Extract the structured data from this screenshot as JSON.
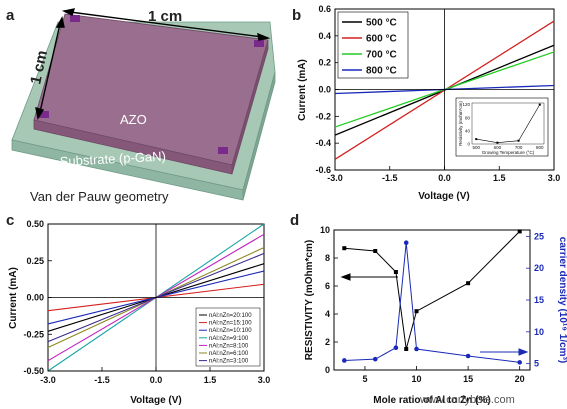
{
  "panel_a": {
    "label": "a",
    "dim_top": "1 cm",
    "dim_left": "1 cm",
    "film_label": "AZO",
    "substrate_label": "Substrate (p-GaN)",
    "caption": "Van der Pauw geometry",
    "colors": {
      "film": "#9a6e8e",
      "substrate": "#a8c8b6",
      "contact": "#7a2a8a"
    }
  },
  "watermark": "www.cnrfybots.com",
  "chart_data": [
    {
      "panel": "b",
      "type": "line",
      "xlabel": "Voltage (V)",
      "ylabel": "Current (mA)",
      "xlim": [
        -3.0,
        3.0
      ],
      "ylim": [
        -0.6,
        0.6
      ],
      "xticks": [
        "-3.0",
        "-1.5",
        "0.0",
        "1.5",
        "3.0"
      ],
      "yticks": [
        "-0.6",
        "-0.4",
        "-0.2",
        "0.0",
        "0.2",
        "0.4",
        "0.6"
      ],
      "legend_position": "top-left",
      "series": [
        {
          "name": "500 °C",
          "color": "#000000",
          "x": [
            -3.0,
            3.0
          ],
          "y": [
            -0.34,
            0.33
          ]
        },
        {
          "name": "600 °C",
          "color": "#d42020",
          "x": [
            -3.0,
            3.0
          ],
          "y": [
            -0.52,
            0.51
          ]
        },
        {
          "name": "700 °C",
          "color": "#22cc22",
          "x": [
            -3.0,
            3.0
          ],
          "y": [
            -0.28,
            0.28
          ]
        },
        {
          "name": "800 °C",
          "color": "#1a2ab8",
          "x": [
            -3.0,
            3.0
          ],
          "y": [
            -0.03,
            0.03
          ]
        }
      ],
      "inset": {
        "xlabel": "Growing Temperature (°C)",
        "ylabel": "Resistivity (mohm*cm)",
        "xticks": [
          "500",
          "600",
          "700",
          "800"
        ],
        "yticks": [
          "0",
          "40",
          "80",
          "120"
        ],
        "x": [
          500,
          600,
          700,
          800
        ],
        "y": [
          15,
          4,
          10,
          120
        ]
      }
    },
    {
      "panel": "c",
      "type": "line",
      "xlabel": "Voltage (V)",
      "ylabel": "Current (mA)",
      "xlim": [
        -3.0,
        3.0
      ],
      "ylim": [
        -0.5,
        0.5
      ],
      "xticks": [
        "-3.0",
        "-1.5",
        "0.0",
        "1.5",
        "3.0"
      ],
      "yticks": [
        "-0.50",
        "-0.25",
        "0.00",
        "0.25",
        "0.50"
      ],
      "legend_position": "bottom-right",
      "series": [
        {
          "name": "nAl:nZn=20:100",
          "color": "#000000",
          "x": [
            -3.0,
            3.0
          ],
          "y": [
            -0.23,
            0.23
          ]
        },
        {
          "name": "nAl:nZn=15:100",
          "color": "#d42020",
          "x": [
            -3.0,
            3.0
          ],
          "y": [
            -0.09,
            0.09
          ]
        },
        {
          "name": "nAl:nZn=10:100",
          "color": "#1a2ab8",
          "x": [
            -3.0,
            3.0
          ],
          "y": [
            -0.18,
            0.18
          ]
        },
        {
          "name": "nAl:nZn=9:100",
          "color": "#17a6a6",
          "x": [
            -3.0,
            3.0
          ],
          "y": [
            -0.5,
            0.5
          ]
        },
        {
          "name": "nAl:nZn=8:100",
          "color": "#c020c0",
          "x": [
            -3.0,
            3.0
          ],
          "y": [
            -0.43,
            0.43
          ]
        },
        {
          "name": "nAl:nZn=6:100",
          "color": "#8a8a20",
          "x": [
            -3.0,
            3.0
          ],
          "y": [
            -0.34,
            0.34
          ]
        },
        {
          "name": "nAl:nZn=3:100",
          "color": "#3a2a90",
          "x": [
            -3.0,
            3.0
          ],
          "y": [
            -0.3,
            0.3
          ]
        }
      ]
    },
    {
      "panel": "d",
      "type": "line",
      "xlabel": "Mole ratio of Al to Zn (%)",
      "ylabel": "RESISTIVITY (mOhm*cm)",
      "ylabel_right": "carrier density (10¹⁹ 1/cm³)",
      "xlim": [
        2,
        21
      ],
      "ylim": [
        0,
        10
      ],
      "ylim_right": [
        4,
        26
      ],
      "xticks": [
        "5",
        "10",
        "15",
        "20"
      ],
      "yticks": [
        "0",
        "2",
        "4",
        "6",
        "8",
        "10"
      ],
      "yticks_right": [
        "5",
        "10",
        "15",
        "20",
        "25"
      ],
      "series": [
        {
          "name": "",
          "axis": "left",
          "color": "#000000",
          "x": [
            3,
            6,
            8,
            9,
            10,
            15,
            20
          ],
          "y": [
            8.7,
            8.5,
            7.0,
            1.5,
            4.2,
            6.2,
            9.9
          ]
        },
        {
          "name": "",
          "axis": "right",
          "color": "#1a2ab8",
          "x": [
            3,
            6,
            8,
            9,
            10,
            15,
            20
          ],
          "y": [
            5.5,
            5.7,
            7.5,
            24.0,
            7.3,
            6.2,
            5.2
          ]
        }
      ]
    }
  ]
}
